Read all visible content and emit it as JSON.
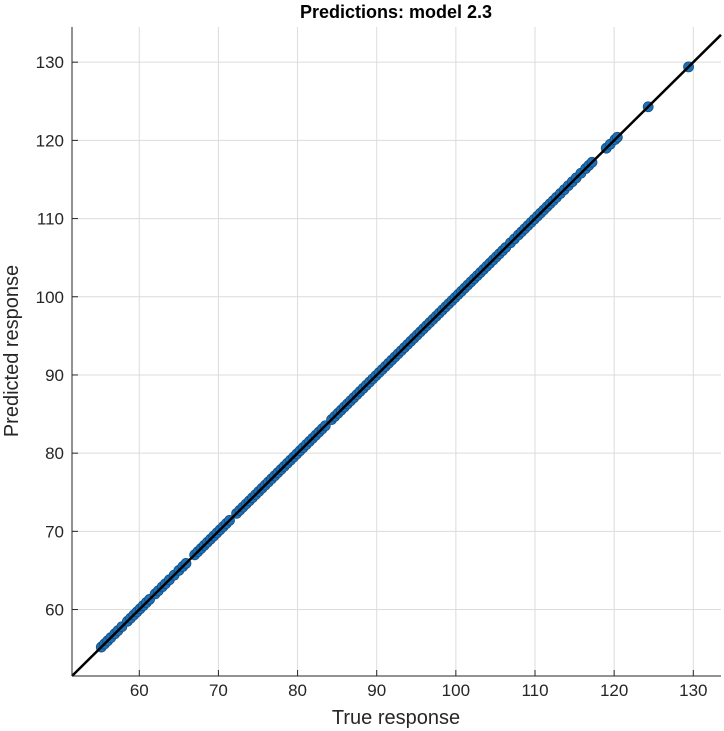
{
  "chart_data": {
    "type": "scatter",
    "title": "Predictions: model 2.3",
    "xlabel": "True response",
    "ylabel": "Predicted response",
    "xlim": [
      51.5,
      133.5
    ],
    "ylim": [
      51.5,
      134.5
    ],
    "x_ticks": [
      60,
      70,
      80,
      90,
      100,
      110,
      120,
      130
    ],
    "y_ticks": [
      60,
      70,
      80,
      90,
      100,
      110,
      120,
      130
    ],
    "grid": true,
    "legend": "none",
    "reference_line": {
      "slope": 1,
      "intercept": 0,
      "color": "#000000"
    },
    "series": [
      {
        "color": "#1f6fb4",
        "x": [
          55.2,
          55.6,
          56.0,
          56.4,
          56.9,
          57.3,
          57.8,
          58.5,
          58.9,
          59.3,
          59.7,
          60.1,
          60.5,
          60.9,
          61.3,
          62.0,
          62.4,
          62.9,
          63.3,
          63.8,
          64.4,
          65.0,
          65.5,
          65.9,
          67.0,
          67.4,
          67.8,
          68.2,
          68.6,
          69.0,
          69.4,
          69.8,
          70.2,
          70.6,
          71.0,
          71.4,
          72.3,
          72.7,
          73.1,
          73.5,
          73.9,
          74.3,
          74.7,
          75.1,
          75.5,
          75.9,
          76.3,
          76.7,
          77.1,
          77.5,
          77.9,
          78.3,
          78.7,
          79.1,
          79.5,
          79.9,
          80.3,
          80.7,
          81.1,
          81.5,
          81.9,
          82.3,
          82.7,
          83.1,
          83.5,
          84.3,
          84.7,
          85.1,
          85.5,
          85.9,
          86.3,
          86.7,
          87.1,
          87.5,
          87.9,
          88.3,
          88.7,
          89.1,
          89.5,
          89.9,
          90.3,
          90.7,
          91.1,
          91.5,
          91.9,
          92.3,
          92.7,
          93.1,
          93.5,
          93.9,
          94.3,
          94.7,
          95.1,
          95.5,
          95.9,
          96.3,
          96.7,
          97.1,
          97.5,
          97.9,
          98.3,
          98.7,
          99.1,
          99.5,
          99.9,
          100.3,
          100.7,
          101.1,
          101.5,
          101.9,
          102.3,
          102.7,
          103.1,
          103.5,
          103.9,
          104.3,
          104.7,
          105.1,
          105.5,
          105.9,
          106.3,
          106.9,
          107.4,
          107.9,
          108.3,
          108.7,
          109.1,
          109.5,
          109.9,
          110.3,
          110.7,
          111.1,
          111.5,
          111.9,
          112.3,
          112.7,
          113.2,
          113.7,
          114.2,
          114.7,
          115.2,
          115.8,
          116.4,
          116.8,
          117.2,
          119.0,
          119.5,
          120.1,
          120.4,
          124.3,
          129.4
        ],
        "y": [
          55.2,
          55.6,
          56.0,
          56.4,
          56.9,
          57.3,
          57.8,
          58.5,
          58.9,
          59.3,
          59.7,
          60.1,
          60.5,
          60.9,
          61.3,
          62.0,
          62.4,
          62.9,
          63.3,
          63.8,
          64.4,
          65.0,
          65.5,
          65.9,
          67.0,
          67.4,
          67.8,
          68.2,
          68.6,
          69.0,
          69.4,
          69.8,
          70.2,
          70.6,
          71.0,
          71.4,
          72.3,
          72.7,
          73.1,
          73.5,
          73.9,
          74.3,
          74.7,
          75.1,
          75.5,
          75.9,
          76.3,
          76.7,
          77.1,
          77.5,
          77.9,
          78.3,
          78.7,
          79.1,
          79.5,
          79.9,
          80.3,
          80.7,
          81.1,
          81.5,
          81.9,
          82.3,
          82.7,
          83.1,
          83.5,
          84.3,
          84.7,
          85.1,
          85.5,
          85.9,
          86.3,
          86.7,
          87.1,
          87.5,
          87.9,
          88.3,
          88.7,
          89.1,
          89.5,
          89.9,
          90.3,
          90.7,
          91.1,
          91.5,
          91.9,
          92.3,
          92.7,
          93.1,
          93.5,
          93.9,
          94.3,
          94.7,
          95.1,
          95.5,
          95.9,
          96.3,
          96.7,
          97.1,
          97.5,
          97.9,
          98.3,
          98.7,
          99.1,
          99.5,
          99.9,
          100.3,
          100.7,
          101.1,
          101.5,
          101.9,
          102.3,
          102.7,
          103.1,
          103.5,
          103.9,
          104.3,
          104.7,
          105.1,
          105.5,
          105.9,
          106.3,
          106.9,
          107.4,
          107.9,
          108.3,
          108.7,
          109.1,
          109.5,
          109.9,
          110.3,
          110.7,
          111.1,
          111.5,
          111.9,
          112.3,
          112.7,
          113.2,
          113.7,
          114.2,
          114.7,
          115.2,
          115.8,
          116.4,
          116.8,
          117.2,
          119.0,
          119.5,
          120.1,
          120.4,
          124.3,
          129.4
        ]
      }
    ]
  }
}
